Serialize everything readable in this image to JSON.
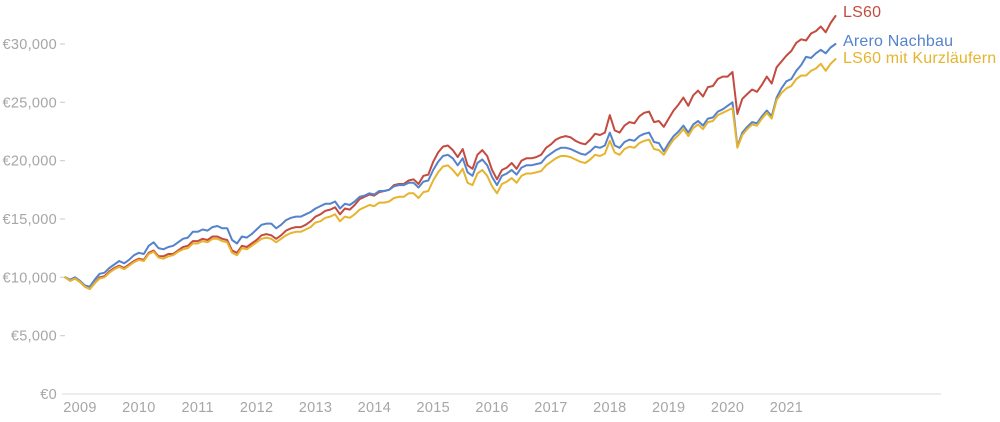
{
  "chart_data": {
    "type": "line",
    "title": "",
    "currency": "EUR",
    "x_unit": "monthly values, Oct 2008 – Nov 2021",
    "values_unit": "EUR thousands",
    "start_year_fraction": 2008.75,
    "ylim": [
      0,
      32500
    ],
    "y_ticks": [
      {
        "value": 0,
        "label": "€0"
      },
      {
        "value": 5000,
        "label": "€5,000"
      },
      {
        "value": 10000,
        "label": "€10,000"
      },
      {
        "value": 15000,
        "label": "€15,000"
      },
      {
        "value": 20000,
        "label": "€20,000"
      },
      {
        "value": 25000,
        "label": "€25,000"
      },
      {
        "value": 30000,
        "label": "€30,000"
      }
    ],
    "x_ticks": [
      "2009",
      "2010",
      "2011",
      "2012",
      "2013",
      "2014",
      "2015",
      "2016",
      "2017",
      "2018",
      "2019",
      "2020",
      "2021"
    ],
    "grid": "baseline-only",
    "legend_position": "top-right",
    "series": [
      {
        "name": "LS60",
        "color": "#c44b40",
        "final_value": 32400,
        "values": [
          10.0,
          9.7,
          9.9,
          9.6,
          9.2,
          9.0,
          9.5,
          10.0,
          10.1,
          10.5,
          10.8,
          11.0,
          10.8,
          11.1,
          11.4,
          11.6,
          11.5,
          12.1,
          12.3,
          11.8,
          11.8,
          12.0,
          12.0,
          12.3,
          12.6,
          12.7,
          13.1,
          13.1,
          13.3,
          13.2,
          13.5,
          13.5,
          13.3,
          13.2,
          12.3,
          12.1,
          12.7,
          12.6,
          12.9,
          13.2,
          13.6,
          13.7,
          13.6,
          13.3,
          13.6,
          14.0,
          14.2,
          14.3,
          14.3,
          14.5,
          14.8,
          15.2,
          15.4,
          15.7,
          15.8,
          16.0,
          15.4,
          15.9,
          15.8,
          16.2,
          16.7,
          16.9,
          17.1,
          17.0,
          17.3,
          17.4,
          17.5,
          17.9,
          18.0,
          18.0,
          18.3,
          18.4,
          18.0,
          18.7,
          18.8,
          19.9,
          20.7,
          21.2,
          21.3,
          20.9,
          20.3,
          21.0,
          19.6,
          19.3,
          20.5,
          20.9,
          20.4,
          19.2,
          18.4,
          19.2,
          19.4,
          19.8,
          19.3,
          20.0,
          20.2,
          20.2,
          20.3,
          20.5,
          21.1,
          21.4,
          21.8,
          22.0,
          22.1,
          22.0,
          21.7,
          21.5,
          21.4,
          21.8,
          22.3,
          22.2,
          22.4,
          23.9,
          22.6,
          22.4,
          23.0,
          23.3,
          23.2,
          23.8,
          24.1,
          24.2,
          23.3,
          23.4,
          22.9,
          23.6,
          24.3,
          24.8,
          25.4,
          24.7,
          25.6,
          26.0,
          25.5,
          26.3,
          26.4,
          27.0,
          27.2,
          27.2,
          27.6,
          24.0,
          25.3,
          25.7,
          26.1,
          25.9,
          26.5,
          27.2,
          26.6,
          28.0,
          28.5,
          29.0,
          29.4,
          30.1,
          30.4,
          30.3,
          30.9,
          31.1,
          31.5,
          31.0,
          31.8,
          32.4
        ]
      },
      {
        "name": "Arero Nachbau",
        "color": "#5583cb",
        "final_value": 30000,
        "values": [
          10.0,
          9.8,
          10.0,
          9.7,
          9.3,
          9.2,
          9.8,
          10.3,
          10.4,
          10.8,
          11.1,
          11.4,
          11.2,
          11.5,
          11.9,
          12.1,
          12.0,
          12.7,
          13.0,
          12.5,
          12.4,
          12.6,
          12.7,
          13.0,
          13.3,
          13.4,
          13.9,
          13.9,
          14.1,
          14.0,
          14.3,
          14.4,
          14.2,
          14.2,
          13.2,
          12.9,
          13.5,
          13.4,
          13.7,
          14.1,
          14.5,
          14.6,
          14.6,
          14.2,
          14.5,
          14.9,
          15.1,
          15.2,
          15.2,
          15.4,
          15.6,
          15.9,
          16.1,
          16.3,
          16.3,
          16.5,
          15.9,
          16.3,
          16.2,
          16.5,
          16.9,
          17.0,
          17.2,
          17.1,
          17.4,
          17.4,
          17.5,
          17.8,
          17.9,
          17.9,
          18.1,
          18.1,
          17.7,
          18.2,
          18.3,
          19.2,
          19.9,
          20.4,
          20.5,
          20.2,
          19.6,
          20.2,
          19.0,
          18.7,
          19.8,
          20.1,
          19.6,
          18.6,
          17.9,
          18.7,
          18.9,
          19.2,
          18.8,
          19.4,
          19.6,
          19.6,
          19.7,
          19.8,
          20.3,
          20.6,
          20.9,
          21.1,
          21.1,
          21.0,
          20.8,
          20.6,
          20.5,
          20.8,
          21.2,
          21.1,
          21.3,
          22.4,
          21.3,
          21.1,
          21.6,
          21.8,
          21.7,
          22.1,
          22.3,
          22.4,
          21.6,
          21.5,
          20.8,
          21.5,
          22.1,
          22.5,
          23.0,
          22.4,
          23.1,
          23.4,
          23.0,
          23.6,
          23.7,
          24.2,
          24.4,
          24.7,
          25.0,
          21.2,
          22.4,
          22.9,
          23.3,
          23.2,
          23.8,
          24.3,
          23.8,
          25.4,
          26.2,
          26.8,
          27.0,
          27.7,
          28.2,
          28.9,
          28.8,
          29.2,
          29.5,
          29.2,
          29.7,
          30.0
        ]
      },
      {
        "name": "LS60 mit Kurzläufern",
        "color": "#e6b42e",
        "final_value": 28700,
        "values": [
          10.0,
          9.7,
          9.9,
          9.6,
          9.2,
          9.0,
          9.5,
          9.9,
          10.0,
          10.4,
          10.7,
          10.9,
          10.7,
          11.0,
          11.3,
          11.5,
          11.4,
          12.0,
          12.2,
          11.7,
          11.6,
          11.8,
          11.9,
          12.2,
          12.4,
          12.5,
          12.9,
          12.9,
          13.1,
          13.0,
          13.3,
          13.3,
          13.1,
          13.0,
          12.1,
          11.9,
          12.5,
          12.4,
          12.7,
          13.0,
          13.3,
          13.4,
          13.3,
          13.0,
          13.3,
          13.6,
          13.8,
          13.9,
          13.9,
          14.1,
          14.3,
          14.7,
          14.8,
          15.1,
          15.2,
          15.4,
          14.8,
          15.2,
          15.1,
          15.4,
          15.8,
          16.0,
          16.2,
          16.1,
          16.4,
          16.4,
          16.5,
          16.8,
          16.9,
          16.9,
          17.2,
          17.2,
          16.8,
          17.3,
          17.4,
          18.3,
          19.0,
          19.5,
          19.6,
          19.2,
          18.7,
          19.3,
          18.1,
          17.9,
          18.9,
          19.2,
          18.7,
          17.8,
          17.2,
          18.0,
          18.2,
          18.5,
          18.1,
          18.7,
          18.9,
          18.9,
          19.0,
          19.1,
          19.6,
          19.9,
          20.2,
          20.4,
          20.4,
          20.3,
          20.1,
          19.9,
          19.8,
          20.1,
          20.5,
          20.4,
          20.6,
          21.7,
          20.7,
          20.5,
          21.0,
          21.2,
          21.1,
          21.5,
          21.7,
          21.8,
          21.0,
          20.9,
          20.5,
          21.2,
          21.8,
          22.2,
          22.7,
          22.1,
          22.8,
          23.1,
          22.7,
          23.3,
          23.4,
          23.9,
          24.1,
          24.3,
          24.5,
          21.1,
          22.2,
          22.7,
          23.1,
          23.0,
          23.6,
          24.1,
          23.6,
          25.2,
          25.8,
          26.2,
          26.4,
          27.0,
          27.3,
          27.3,
          27.7,
          27.9,
          28.3,
          27.7,
          28.3,
          28.7
        ]
      }
    ],
    "colors": {
      "axis_text": "#a6a6a6",
      "baseline": "#e2e2e2",
      "tick_dash": "#d2d2d2",
      "background": "#ffffff"
    }
  }
}
